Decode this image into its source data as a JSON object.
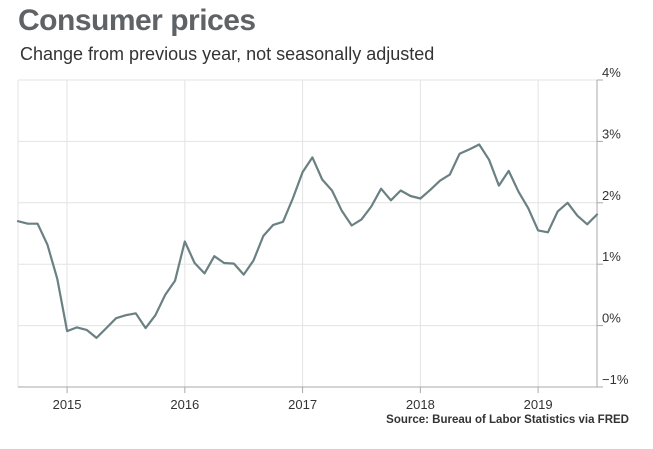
{
  "header": {
    "title": "Consumer prices",
    "subtitle": "Change from previous year, not seasonally adjusted"
  },
  "footer": {
    "source": "Source: Bureau of Labor Statistics via FRED"
  },
  "colors": {
    "line": "#6b8082",
    "grid": "#e3e3e3",
    "axis": "#a8a8a8"
  },
  "chart_data": {
    "type": "line",
    "title": "Consumer prices",
    "subtitle": "Change from previous year, not seasonally adjusted",
    "xlabel": "",
    "ylabel": "",
    "xlim": [
      "2014-08",
      "2019-07"
    ],
    "ylim": [
      -1,
      4
    ],
    "y_ticks": [
      4,
      3,
      2,
      1,
      0,
      -1
    ],
    "y_tick_labels": [
      "4%",
      "3%",
      "2%",
      "1%",
      "0%",
      "−1%"
    ],
    "x_ticks": [
      "2015-01",
      "2016-01",
      "2017-01",
      "2018-01",
      "2019-01"
    ],
    "x_tick_labels": [
      "2015",
      "2016",
      "2017",
      "2018",
      "2019"
    ],
    "grid": true,
    "y_axis_side": "right",
    "series": [
      {
        "x": [
          "2014-08",
          "2014-09",
          "2014-10",
          "2014-11",
          "2014-12",
          "2015-01",
          "2015-02",
          "2015-03",
          "2015-04",
          "2015-05",
          "2015-06",
          "2015-07",
          "2015-08",
          "2015-09",
          "2015-10",
          "2015-11",
          "2015-12",
          "2016-01",
          "2016-02",
          "2016-03",
          "2016-04",
          "2016-05",
          "2016-06",
          "2016-07",
          "2016-08",
          "2016-09",
          "2016-10",
          "2016-11",
          "2016-12",
          "2017-01",
          "2017-02",
          "2017-03",
          "2017-04",
          "2017-05",
          "2017-06",
          "2017-07",
          "2017-08",
          "2017-09",
          "2017-10",
          "2017-11",
          "2017-12",
          "2018-01",
          "2018-02",
          "2018-03",
          "2018-04",
          "2018-05",
          "2018-06",
          "2018-07",
          "2018-08",
          "2018-09",
          "2018-10",
          "2018-11",
          "2018-12",
          "2019-01",
          "2019-02",
          "2019-03",
          "2019-04",
          "2019-05",
          "2019-06",
          "2019-07"
        ],
        "y": [
          1.7,
          1.66,
          1.66,
          1.32,
          0.76,
          -0.09,
          -0.03,
          -0.07,
          -0.2,
          -0.04,
          0.12,
          0.17,
          0.2,
          -0.04,
          0.17,
          0.5,
          0.73,
          1.37,
          1.02,
          0.85,
          1.13,
          1.02,
          1.01,
          0.83,
          1.06,
          1.46,
          1.64,
          1.69,
          2.07,
          2.5,
          2.74,
          2.38,
          2.2,
          1.87,
          1.63,
          1.73,
          1.94,
          2.23,
          2.04,
          2.2,
          2.11,
          2.07,
          2.21,
          2.36,
          2.46,
          2.8,
          2.87,
          2.95,
          2.7,
          2.28,
          2.52,
          2.18,
          1.91,
          1.55,
          1.52,
          1.86,
          2.0,
          1.79,
          1.65,
          1.81
        ]
      }
    ]
  }
}
